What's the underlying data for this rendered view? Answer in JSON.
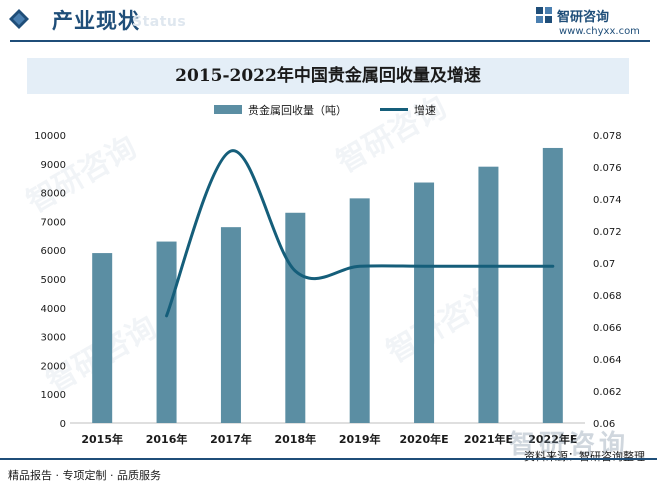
{
  "header": {
    "section_title": "产业现状",
    "section_subtitle": "Status",
    "brand_name": "智研咨询",
    "brand_url": "www.chyxx.com"
  },
  "watermark": "智研咨询",
  "chart_data": {
    "type": "bar",
    "title": "2015-2022年中国贵金属回收量及增速",
    "categories": [
      "2015年",
      "2016年",
      "2017年",
      "2018年",
      "2019年",
      "2020年E",
      "2021年E",
      "2022年E"
    ],
    "series": [
      {
        "name": "贵金属回收量（吨）",
        "type": "bar",
        "axis": "left",
        "color": "#5b8ea3",
        "values": [
          5900,
          6300,
          6800,
          7300,
          7800,
          8350,
          8900,
          9550
        ]
      },
      {
        "name": "增速",
        "type": "line",
        "axis": "right",
        "color": "#155e7a",
        "values": [
          null,
          0.0667,
          0.077,
          0.0695,
          0.0698,
          0.0698,
          0.0698,
          0.0698
        ]
      }
    ],
    "y_left": {
      "min": 0,
      "max": 10000,
      "step": 1000,
      "ticks": [
        "0",
        "1000",
        "2000",
        "3000",
        "4000",
        "5000",
        "6000",
        "7000",
        "8000",
        "9000",
        "10000"
      ]
    },
    "y_right": {
      "min": 0.06,
      "max": 0.078,
      "step": 0.002,
      "ticks": [
        "0.06",
        "0.062",
        "0.064",
        "0.066",
        "0.068",
        "0.07",
        "0.072",
        "0.074",
        "0.076",
        "0.078"
      ]
    },
    "grid": false,
    "legend_position": "top-center"
  },
  "footer": {
    "left": "精品报告 · 专项定制 · 品质服务",
    "right": "资料来源：智研咨询整理"
  }
}
